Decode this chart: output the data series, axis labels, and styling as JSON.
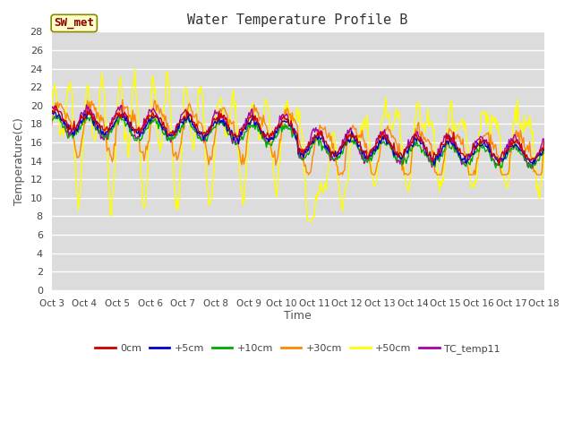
{
  "title": "Water Temperature Profile B",
  "xlabel": "Time",
  "ylabel": "Temperature(C)",
  "annotation": "SW_met",
  "ylim": [
    0,
    28
  ],
  "yticks": [
    0,
    2,
    4,
    6,
    8,
    10,
    12,
    14,
    16,
    18,
    20,
    22,
    24,
    26,
    28
  ],
  "bg_color": "#dcdcdc",
  "plot_bg": "#dcdcdc",
  "series_colors": {
    "0cm": "#cc0000",
    "+5cm": "#0000cc",
    "+10cm": "#00aa00",
    "+30cm": "#ff8800",
    "+50cm": "#ffff00",
    "TC_temp11": "#aa00aa"
  },
  "x_labels": [
    "Oct 3",
    "Oct 4",
    "Oct 5",
    "Oct 6",
    "Oct 7",
    "Oct 8",
    "Oct 9",
    "Oct 10",
    "Oct 11",
    "Oct 12",
    "Oct 13",
    "Oct 14",
    "Oct 15",
    "Oct 16",
    "Oct 17",
    "Oct 18"
  ],
  "n_points": 480,
  "fig_width": 6.4,
  "fig_height": 4.8,
  "fig_dpi": 100
}
